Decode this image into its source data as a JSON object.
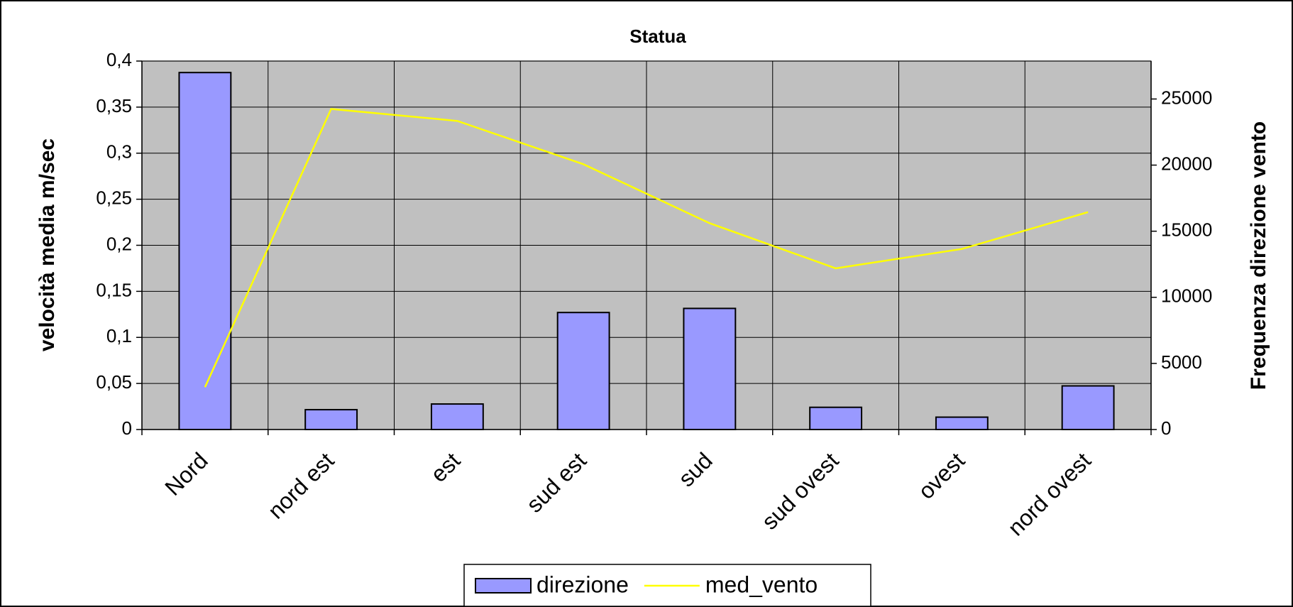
{
  "chart_data": {
    "type": "bar-line",
    "title": "Statua",
    "categories": [
      "Nord",
      "nord est",
      "est",
      "sud est",
      "sud",
      "sud ovest",
      "ovest",
      "nord ovest"
    ],
    "series": [
      {
        "name": "direzione",
        "type": "bar",
        "axis": "y2",
        "color": "#9999ff",
        "values": [
          27000,
          1500,
          1930,
          8850,
          9160,
          1680,
          935,
          3300
        ]
      },
      {
        "name": "med_vento",
        "type": "line",
        "color": "#ffff00",
        "values": [
          0.046,
          0.348,
          0.335,
          0.288,
          0.224,
          0.175,
          0.196,
          0.236
        ]
      }
    ],
    "ylabel": "velocità media m/sec",
    "y2label": "Frequenza direzione vento",
    "ylim": [
      0,
      0.4
    ],
    "yticks": [
      {
        "value": 0,
        "label": "0"
      },
      {
        "value": 0.05,
        "label": "0,05"
      },
      {
        "value": 0.1,
        "label": "0,1"
      },
      {
        "value": 0.15,
        "label": "0,15"
      },
      {
        "value": 0.2,
        "label": "0,2"
      },
      {
        "value": 0.25,
        "label": "0,25"
      },
      {
        "value": 0.3,
        "label": "0,3"
      },
      {
        "value": 0.35,
        "label": "0,35"
      },
      {
        "value": 0.4,
        "label": "0,4"
      }
    ],
    "y2lim": [
      0,
      27870
    ],
    "y2ticks": [
      0,
      5000,
      10000,
      15000,
      20000,
      25000
    ],
    "grid": true,
    "legend": "bottom",
    "background": "#c0c0c0"
  }
}
